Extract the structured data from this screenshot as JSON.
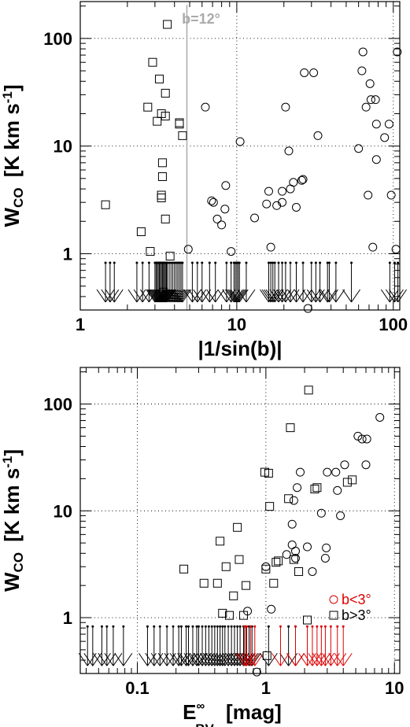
{
  "chart_data": [
    {
      "type": "scatter",
      "xlabel": "|1/sin(b)|",
      "ylabel_main": "W",
      "ylabel_sub": "CO",
      "ylabel_unit": "[K km s",
      "ylabel_exp": "-1",
      "ylabel_close": "]",
      "xscale": "log",
      "yscale": "log",
      "xlim": [
        1,
        110
      ],
      "ylim": [
        0.3,
        220
      ],
      "grid": true,
      "xticks": [
        {
          "v": 1,
          "label": "1"
        },
        {
          "v": 10,
          "label": "10"
        },
        {
          "v": 100,
          "label": "100"
        }
      ],
      "yticks": [
        {
          "v": 1,
          "label": "1"
        },
        {
          "v": 10,
          "label": "10"
        },
        {
          "v": 100,
          "label": "100"
        }
      ],
      "vline": {
        "x": 4.8,
        "label": "b=12°",
        "color": "#aaaaaa"
      },
      "squares": [
        [
          1.45,
          2.85
        ],
        [
          2.45,
          1.6
        ],
        [
          2.7,
          23
        ],
        [
          2.8,
          1.05
        ],
        [
          2.9,
          60
        ],
        [
          3.1,
          17
        ],
        [
          3.2,
          42
        ],
        [
          3.3,
          20
        ],
        [
          3.3,
          3.5
        ],
        [
          3.3,
          3.3
        ],
        [
          3.35,
          7.0
        ],
        [
          3.35,
          5.2
        ],
        [
          3.4,
          0.44
        ],
        [
          3.5,
          19
        ],
        [
          3.5,
          31
        ],
        [
          3.5,
          2.1
        ],
        [
          3.6,
          135
        ],
        [
          3.75,
          0.95
        ],
        [
          4.3,
          16
        ],
        [
          4.3,
          16.5
        ],
        [
          4.5,
          12.5
        ]
      ],
      "circles": [
        [
          4.9,
          1.1
        ],
        [
          6.3,
          23
        ],
        [
          6.9,
          3.1
        ],
        [
          7.1,
          3.0
        ],
        [
          7.5,
          2.1
        ],
        [
          8.0,
          1.85
        ],
        [
          8.4,
          2.6
        ],
        [
          8.5,
          4.3
        ],
        [
          9.2,
          1.05
        ],
        [
          10.5,
          11
        ],
        [
          13,
          2.15
        ],
        [
          15.5,
          2.9
        ],
        [
          16,
          3.8
        ],
        [
          16.5,
          1.15
        ],
        [
          18,
          2.8
        ],
        [
          19.5,
          3.0
        ],
        [
          19.5,
          3.8
        ],
        [
          20.5,
          23
        ],
        [
          21.5,
          9.0
        ],
        [
          22,
          4.0
        ],
        [
          23,
          4.6
        ],
        [
          24,
          2.7
        ],
        [
          26,
          4.8
        ],
        [
          26.5,
          4.9
        ],
        [
          27,
          48
        ],
        [
          31,
          48
        ],
        [
          33,
          12.5
        ],
        [
          60,
          9.5
        ],
        [
          63,
          50
        ],
        [
          64,
          75
        ],
        [
          67,
          23
        ],
        [
          69,
          3.5
        ],
        [
          71,
          38
        ],
        [
          72,
          27
        ],
        [
          74,
          1.15
        ],
        [
          77,
          27
        ],
        [
          78,
          7.5
        ],
        [
          78,
          16
        ],
        [
          88,
          12
        ],
        [
          94,
          16
        ],
        [
          97,
          3.5
        ],
        [
          104,
          1.1
        ],
        [
          106,
          75
        ],
        [
          28.5,
          0.31
        ]
      ],
      "upper_limits_x": [
        1.45,
        1.55,
        1.65,
        2.3,
        2.5,
        2.75,
        3.0,
        3.05,
        3.1,
        3.15,
        3.2,
        3.25,
        3.3,
        3.35,
        3.4,
        3.45,
        3.5,
        3.55,
        3.6,
        3.7,
        3.8,
        3.9,
        4.0,
        4.1,
        4.2,
        4.3,
        4.4,
        4.5,
        5.2,
        5.6,
        6.0,
        6.7,
        7.3,
        8.6,
        9.2,
        9.6,
        9.8,
        10,
        10.2,
        10.4,
        11.5,
        16,
        16.5,
        17,
        17.5,
        18.5,
        19.5,
        20.5,
        22,
        24,
        26.5,
        30,
        32,
        34,
        38,
        39,
        43,
        54,
        95,
        102,
        107
      ],
      "upper_limit_y": 0.55
    },
    {
      "type": "scatter",
      "xlabel_main": "E",
      "xlabel_sub": "BV",
      "xlabel_sup": "∞",
      "xlabel_unit": "[mag]",
      "ylabel_main": "W",
      "ylabel_sub": "CO",
      "ylabel_unit": "[K km s",
      "ylabel_exp": "-1",
      "ylabel_close": "]",
      "xscale": "log",
      "yscale": "log",
      "xlim": [
        0.036,
        11
      ],
      "ylim": [
        0.3,
        220
      ],
      "grid": true,
      "xticks": [
        {
          "v": 0.1,
          "label": "0.1"
        },
        {
          "v": 1,
          "label": "1"
        },
        {
          "v": 10,
          "label": "10"
        }
      ],
      "yticks": [
        {
          "v": 1,
          "label": "1"
        },
        {
          "v": 10,
          "label": "10"
        },
        {
          "v": 100,
          "label": "100"
        }
      ],
      "legend": [
        {
          "name": "b<3°",
          "color": "#dd0000",
          "symbol": "circle"
        },
        {
          "name": "b>3°",
          "color": "#000000",
          "symbol": "square"
        }
      ],
      "legend_placement": "bottom-right",
      "squares": [
        [
          0.23,
          2.85
        ],
        [
          0.33,
          2.1
        ],
        [
          0.42,
          2.1
        ],
        [
          0.44,
          5.2
        ],
        [
          0.46,
          1.1
        ],
        [
          0.49,
          3.0
        ],
        [
          0.52,
          1.05
        ],
        [
          0.56,
          1.6
        ],
        [
          0.6,
          7.0
        ],
        [
          0.62,
          3.5
        ],
        [
          0.67,
          1.05
        ],
        [
          0.7,
          2.0
        ],
        [
          0.98,
          23
        ],
        [
          1.0,
          2.85
        ],
        [
          1.05,
          22.5
        ],
        [
          1.07,
          11
        ],
        [
          1.15,
          2.1
        ],
        [
          1.2,
          3.3
        ],
        [
          1.25,
          3.4
        ],
        [
          1.5,
          13
        ],
        [
          1.55,
          60
        ],
        [
          1.65,
          3.5
        ],
        [
          1.8,
          2.7
        ],
        [
          2.1,
          0.95
        ],
        [
          2.15,
          135
        ],
        [
          2.4,
          16
        ],
        [
          2.5,
          16.5
        ],
        [
          4.3,
          18.5
        ],
        [
          4.7,
          19.5
        ],
        [
          1.02,
          0.44
        ]
      ],
      "circles": [
        [
          0.72,
          1.15
        ],
        [
          0.85,
          0.31
        ],
        [
          1.0,
          3.0
        ],
        [
          1.1,
          1.2
        ],
        [
          1.45,
          3.9
        ],
        [
          1.6,
          7.5
        ],
        [
          1.6,
          4.8
        ],
        [
          1.65,
          12.5
        ],
        [
          1.7,
          4.2
        ],
        [
          1.7,
          3.6
        ],
        [
          1.75,
          16.5
        ],
        [
          2.1,
          4.6
        ],
        [
          2.3,
          2.7
        ],
        [
          2.7,
          9.5
        ],
        [
          2.9,
          3.6
        ],
        [
          2.95,
          4.5
        ],
        [
          3.0,
          23
        ],
        [
          3.5,
          23
        ],
        [
          3.6,
          15.5
        ],
        [
          3.8,
          9.0
        ],
        [
          4.1,
          27
        ],
        [
          5.2,
          50
        ],
        [
          5.6,
          47
        ],
        [
          6.1,
          47
        ],
        [
          6.0,
          27
        ],
        [
          7.7,
          75
        ],
        [
          1.85,
          23
        ]
      ],
      "upper_limits_black_x": [
        0.041,
        0.045,
        0.053,
        0.058,
        0.065,
        0.078,
        0.12,
        0.135,
        0.15,
        0.17,
        0.19,
        0.21,
        0.22,
        0.24,
        0.25,
        0.27,
        0.29,
        0.3,
        0.32,
        0.34,
        0.36,
        0.38,
        0.4,
        0.42,
        0.44,
        0.46,
        0.48,
        0.51,
        0.54,
        0.57,
        0.6,
        0.63,
        0.67,
        0.7,
        0.74,
        0.78,
        1.05,
        1.5,
        1.7
      ],
      "upper_limits_red_x": [
        0.68,
        0.71,
        0.76,
        0.82,
        1.3,
        1.7,
        2.1,
        2.3,
        2.5,
        2.7,
        2.9,
        3.2,
        3.6,
        4.0
      ],
      "upper_limit_y": 0.55
    }
  ],
  "colors": {
    "red": "#dd0000",
    "black": "#000000",
    "vline": "#aaaaaa"
  }
}
